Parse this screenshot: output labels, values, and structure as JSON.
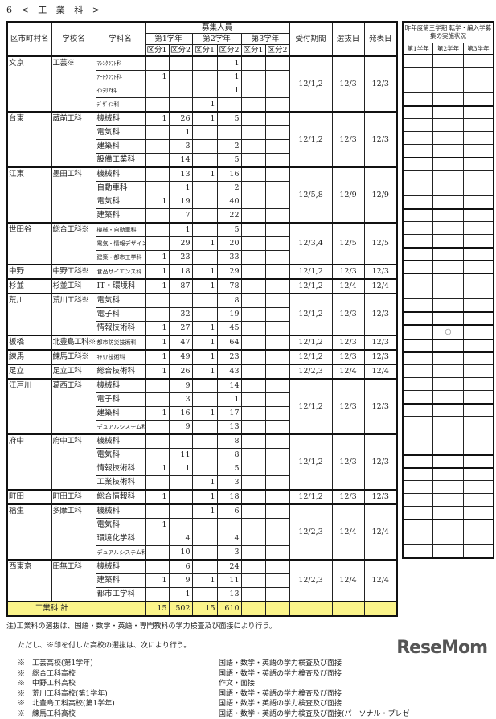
{
  "title": "6 < 工 業 科 >",
  "header": {
    "ward": "区市町村名",
    "school": "学校名",
    "subject": "学科名",
    "recruit": "募集人員",
    "grade1": "第1学年",
    "grade2": "第2学年",
    "grade3": "第3学年",
    "k1": "区分1",
    "k2": "区分2",
    "reception": "受付期間",
    "selection": "選抜日",
    "announce": "発表日"
  },
  "prev_header": {
    "title": "昨年度第三学期 転学・編入学募集の実施状況",
    "g1": "第1学年",
    "g2": "第2学年",
    "g3": "第3学年"
  },
  "schools": [
    {
      "ward": "文京",
      "school": "工芸※",
      "reception": "12/1,2",
      "selection": "12/3",
      "announce": "12/3",
      "subjects": [
        {
          "name": "ﾏｼﾝｸﾗﾌﾄ科",
          "small": true,
          "v": [
            "",
            "",
            "",
            "1",
            "",
            ""
          ]
        },
        {
          "name": "ｱｰﾄｸﾗﾌﾄ科",
          "small": true,
          "v": [
            "1",
            "",
            "",
            "1",
            "",
            ""
          ]
        },
        {
          "name": "ｲﾝﾃﾘｱ科",
          "small": true,
          "v": [
            "",
            "",
            "",
            "1",
            "",
            ""
          ]
        },
        {
          "name": "ﾃﾞｻﾞｲﾝ科",
          "small": true,
          "v": [
            "",
            "",
            "1",
            "",
            "",
            ""
          ]
        }
      ]
    },
    {
      "ward": "台東",
      "school": "蔵前工科",
      "reception": "12/1,2",
      "selection": "12/3",
      "announce": "12/3",
      "subjects": [
        {
          "name": "機械科",
          "v": [
            "1",
            "26",
            "1",
            "5",
            "",
            ""
          ]
        },
        {
          "name": "電気科",
          "v": [
            "",
            "1",
            "",
            "",
            "",
            ""
          ]
        },
        {
          "name": "建築科",
          "v": [
            "",
            "3",
            "",
            "2",
            "",
            ""
          ]
        },
        {
          "name": "設備工業科",
          "v": [
            "",
            "14",
            "",
            "5",
            "",
            ""
          ]
        }
      ]
    },
    {
      "ward": "江東",
      "school": "墨田工科",
      "reception": "12/5,8",
      "selection": "12/9",
      "announce": "12/9",
      "subjects": [
        {
          "name": "機械科",
          "v": [
            "",
            "13",
            "1",
            "16",
            "",
            ""
          ]
        },
        {
          "name": "自動車科",
          "v": [
            "",
            "1",
            "",
            "2",
            "",
            ""
          ]
        },
        {
          "name": "電気科",
          "v": [
            "1",
            "19",
            "",
            "40",
            "",
            ""
          ]
        },
        {
          "name": "建築科",
          "v": [
            "",
            "7",
            "",
            "22",
            "",
            ""
          ]
        }
      ]
    },
    {
      "ward": "世田谷",
      "school": "総合工科※",
      "reception": "12/3,4",
      "selection": "12/5",
      "announce": "12/5",
      "subjects": [
        {
          "name": "機械・自動車科",
          "small": true,
          "v": [
            "",
            "1",
            "",
            "5",
            "",
            ""
          ]
        },
        {
          "name": "電気・情報デザイン科",
          "small": true,
          "v": [
            "",
            "29",
            "1",
            "20",
            "",
            ""
          ]
        },
        {
          "name": "建築・都市工学科",
          "small": true,
          "v": [
            "1",
            "23",
            "",
            "33",
            "",
            ""
          ]
        }
      ]
    },
    {
      "ward": "中野",
      "school": "中野工科※",
      "reception": "12/1,2",
      "selection": "12/3",
      "announce": "12/3",
      "subjects": [
        {
          "name": "食品サイエンス科",
          "small": true,
          "v": [
            "1",
            "18",
            "1",
            "29",
            "",
            ""
          ]
        }
      ]
    },
    {
      "ward": "杉並",
      "school": "杉並工科",
      "reception": "12/1,2",
      "selection": "12/4",
      "announce": "12/4",
      "subjects": [
        {
          "name": "IT・環境科",
          "v": [
            "1",
            "87",
            "1",
            "78",
            "",
            ""
          ]
        }
      ]
    },
    {
      "ward": "荒川",
      "school": "荒川工科※",
      "reception": "12/1,2",
      "selection": "12/3",
      "announce": "12/3",
      "subjects": [
        {
          "name": "電気科",
          "v": [
            "",
            "",
            "",
            "8",
            "",
            ""
          ]
        },
        {
          "name": "電子科",
          "v": [
            "",
            "32",
            "",
            "19",
            "",
            ""
          ]
        },
        {
          "name": "情報技術科",
          "v": [
            "1",
            "27",
            "1",
            "45",
            "",
            ""
          ]
        }
      ]
    },
    {
      "ward": "板橋",
      "school": "北豊島工科※",
      "reception": "12/1,2",
      "selection": "12/3",
      "announce": "12/3",
      "subjects": [
        {
          "name": "都市防災技術科",
          "small": true,
          "v": [
            "1",
            "47",
            "1",
            "64",
            "",
            ""
          ]
        }
      ]
    },
    {
      "ward": "練馬",
      "school": "練馬工科※",
      "reception": "12/1,2",
      "selection": "12/3",
      "announce": "12/3",
      "subjects": [
        {
          "name": "ｷｬﾘｱ技術科",
          "small": true,
          "v": [
            "1",
            "49",
            "1",
            "23",
            "",
            ""
          ]
        }
      ]
    },
    {
      "ward": "足立",
      "school": "足立工科",
      "reception": "12/2,3",
      "selection": "12/4",
      "announce": "12/4",
      "subjects": [
        {
          "name": "総合技術科",
          "v": [
            "1",
            "26",
            "1",
            "43",
            "",
            ""
          ]
        }
      ]
    },
    {
      "ward": "江戸川",
      "school": "葛西工科",
      "reception": "12/1,2",
      "selection": "12/3",
      "announce": "12/3",
      "subjects": [
        {
          "name": "機械科",
          "v": [
            "",
            "9",
            "",
            "14",
            "",
            ""
          ]
        },
        {
          "name": "電子科",
          "v": [
            "",
            "3",
            "",
            "1",
            "",
            ""
          ]
        },
        {
          "name": "建築科",
          "v": [
            "1",
            "16",
            "1",
            "17",
            "",
            ""
          ]
        },
        {
          "name": "デュアルシステム科",
          "small": true,
          "v": [
            "",
            "9",
            "",
            "13",
            "",
            ""
          ]
        }
      ]
    },
    {
      "ward": "府中",
      "school": "府中工科",
      "reception": "12/1,2",
      "selection": "12/3",
      "announce": "12/3",
      "subjects": [
        {
          "name": "機械科",
          "v": [
            "",
            "",
            "",
            "8",
            "",
            ""
          ]
        },
        {
          "name": "電気科",
          "v": [
            "",
            "11",
            "",
            "8",
            "",
            ""
          ]
        },
        {
          "name": "情報技術科",
          "v": [
            "1",
            "1",
            "",
            "5",
            "",
            ""
          ]
        },
        {
          "name": "工業技術科",
          "v": [
            "",
            "",
            "1",
            "3",
            "",
            ""
          ]
        }
      ]
    },
    {
      "ward": "町田",
      "school": "町田工科",
      "reception": "12/1,2",
      "selection": "12/3",
      "announce": "12/3",
      "subjects": [
        {
          "name": "総合情報科",
          "v": [
            "1",
            "",
            "1",
            "18",
            "",
            ""
          ]
        }
      ]
    },
    {
      "ward": "福生",
      "school": "多摩工科",
      "reception": "12/2,3",
      "selection": "12/4",
      "announce": "12/4",
      "subjects": [
        {
          "name": "機械科",
          "v": [
            "",
            "",
            "1",
            "6",
            "",
            ""
          ]
        },
        {
          "name": "電気科",
          "v": [
            "1",
            "",
            "",
            "",
            "",
            ""
          ]
        },
        {
          "name": "環境化学科",
          "v": [
            "",
            "4",
            "",
            "4",
            "",
            ""
          ]
        },
        {
          "name": "デュアルシステム科",
          "small": true,
          "v": [
            "",
            "10",
            "",
            "3",
            "",
            ""
          ]
        }
      ]
    },
    {
      "ward": "西東京",
      "school": "田無工科",
      "reception": "12/2,3",
      "selection": "12/4",
      "announce": "12/4",
      "subjects": [
        {
          "name": "機械科",
          "v": [
            "",
            "6",
            "",
            "24",
            "",
            ""
          ]
        },
        {
          "name": "建築科",
          "v": [
            "1",
            "9",
            "1",
            "11",
            "",
            ""
          ]
        },
        {
          "name": "都市工学科",
          "v": [
            "",
            "1",
            "",
            "13",
            "",
            ""
          ]
        }
      ]
    }
  ],
  "total": {
    "label": "工業科 計",
    "v": [
      "15",
      "502",
      "15",
      "610",
      "",
      ""
    ]
  },
  "prev_marks": [
    {
      "school": "練馬工科※",
      "grade": 2,
      "mark": "○"
    }
  ],
  "notes": {
    "note1": "注)工業科の選抜は、国語・数学・英語・専門教科の学力検査及び面接により行う。",
    "note2": "ただし、※印を付した高校の選抜は、次により行う。",
    "items": [
      {
        "school": "※　工芸高校(第1学年)",
        "method": "国語・数学・英語の学力検査及び面接"
      },
      {
        "school": "※　総合工科高校",
        "method": "国語・数学・英語の学力検査及び面接"
      },
      {
        "school": "※　中野工科高校",
        "method": "作文・面接"
      },
      {
        "school": "※　荒川工科高校(第1学年)",
        "method": "国語・数学・英語の学力検査及び面接"
      },
      {
        "school": "※　北豊島工科高校(第1学年)",
        "method": "国語・数学・英語の学力検査及び面接"
      },
      {
        "school": "※　練馬工科高校",
        "method": "国語・数学・英語の学力検査及び面接(パーソナル・プレゼ"
      }
    ]
  },
  "logo": "ReseMom"
}
